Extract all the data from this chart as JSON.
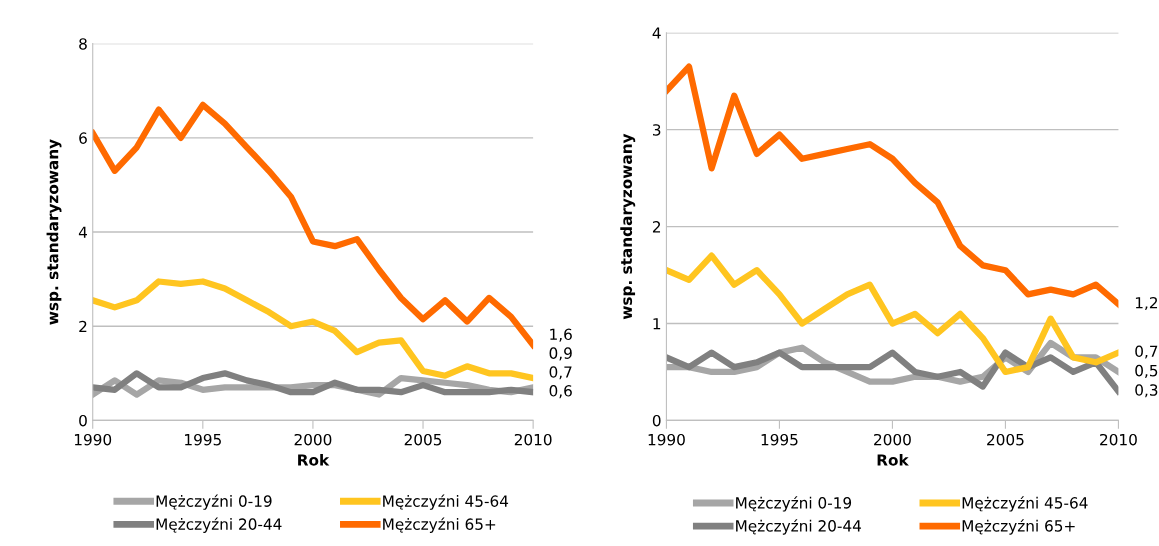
{
  "chart_data": [
    {
      "type": "line",
      "xlabel": "Rok",
      "ylabel": "wsp. standaryzowany",
      "x": [
        1990,
        1991,
        1992,
        1993,
        1994,
        1995,
        1996,
        1997,
        1998,
        1999,
        2000,
        2001,
        2002,
        2003,
        2004,
        2005,
        2006,
        2007,
        2008,
        2009,
        2010
      ],
      "xlim": [
        1990,
        2010
      ],
      "xticks": [
        1990,
        1995,
        2000,
        2005,
        2010
      ],
      "ylim": [
        0,
        8
      ],
      "yticks": [
        0,
        2,
        4,
        6,
        8
      ],
      "grid": "y",
      "legend": "bottom",
      "marker": "none",
      "line_style": "solid",
      "series": [
        {
          "name": "Mężczyźni 0-19",
          "color": "#a6a6a6",
          "values": [
            0.55,
            0.85,
            0.55,
            0.85,
            0.8,
            0.65,
            0.7,
            0.7,
            0.7,
            0.7,
            0.75,
            0.75,
            0.65,
            0.55,
            0.9,
            0.85,
            0.8,
            0.75,
            0.65,
            0.6,
            0.7
          ],
          "value_labels": [
            null,
            null,
            null,
            null,
            null,
            null,
            null,
            null,
            null,
            null,
            null,
            null,
            null,
            null,
            null,
            null,
            null,
            null,
            null,
            null,
            "0,7"
          ]
        },
        {
          "name": "Mężczyźni 20-44",
          "color": "#808080",
          "values": [
            0.7,
            0.65,
            1.0,
            0.7,
            0.7,
            0.9,
            1.0,
            0.85,
            0.75,
            0.6,
            0.6,
            0.8,
            0.65,
            0.65,
            0.6,
            0.75,
            0.6,
            0.6,
            0.6,
            0.65,
            0.6
          ],
          "value_labels": [
            null,
            null,
            null,
            null,
            null,
            null,
            null,
            null,
            null,
            null,
            null,
            null,
            null,
            null,
            null,
            null,
            null,
            null,
            null,
            null,
            "0,6"
          ]
        },
        {
          "name": "Mężczyźni 45-64",
          "color": "#ffc520",
          "values": [
            2.55,
            2.4,
            2.55,
            2.95,
            2.9,
            2.95,
            2.8,
            2.55,
            2.3,
            2.0,
            2.1,
            1.9,
            1.45,
            1.65,
            1.7,
            1.05,
            0.95,
            1.15,
            1.0,
            1.0,
            0.9
          ],
          "value_labels": [
            null,
            null,
            null,
            null,
            null,
            null,
            null,
            null,
            null,
            null,
            null,
            null,
            null,
            null,
            null,
            null,
            null,
            null,
            null,
            null,
            "0,9"
          ]
        },
        {
          "name": "Mężczyźni 65+",
          "color": "#ff6a00",
          "values": [
            6.1,
            5.3,
            5.8,
            6.6,
            6.0,
            6.7,
            6.3,
            5.8,
            5.3,
            4.75,
            3.8,
            3.7,
            3.85,
            3.2,
            2.6,
            2.15,
            2.55,
            2.1,
            2.6,
            2.2,
            1.6
          ],
          "value_labels": [
            null,
            null,
            null,
            null,
            null,
            null,
            null,
            null,
            null,
            null,
            null,
            null,
            null,
            null,
            null,
            null,
            null,
            null,
            null,
            null,
            "1,6"
          ]
        }
      ]
    },
    {
      "type": "line",
      "xlabel": "Rok",
      "ylabel": "wsp. standaryzowany",
      "x": [
        1990,
        1991,
        1992,
        1993,
        1994,
        1995,
        1996,
        1997,
        1998,
        1999,
        2000,
        2001,
        2002,
        2003,
        2004,
        2005,
        2006,
        2007,
        2008,
        2009,
        2010
      ],
      "xlim": [
        1990,
        2010
      ],
      "xticks": [
        1990,
        1995,
        2000,
        2005,
        2010
      ],
      "ylim": [
        0,
        4
      ],
      "yticks": [
        0,
        1,
        2,
        3,
        4
      ],
      "grid": "y",
      "legend": "bottom",
      "marker": "none",
      "line_style": "solid",
      "series": [
        {
          "name": "Mężczyźni 0-19",
          "color": "#a6a6a6",
          "values": [
            0.55,
            0.55,
            0.5,
            0.5,
            0.55,
            0.7,
            0.75,
            0.6,
            0.5,
            0.4,
            0.4,
            0.45,
            0.45,
            0.4,
            0.45,
            0.65,
            0.5,
            0.8,
            0.65,
            0.65,
            0.5
          ],
          "value_labels": [
            null,
            null,
            null,
            null,
            null,
            null,
            null,
            null,
            null,
            null,
            null,
            null,
            null,
            null,
            null,
            null,
            null,
            null,
            null,
            null,
            "0,5"
          ]
        },
        {
          "name": "Mężczyźni 20-44",
          "color": "#808080",
          "values": [
            0.65,
            0.55,
            0.7,
            0.55,
            0.6,
            0.7,
            0.55,
            0.55,
            0.55,
            0.55,
            0.7,
            0.5,
            0.45,
            0.5,
            0.35,
            0.7,
            0.55,
            0.65,
            0.5,
            0.6,
            0.3
          ],
          "value_labels": [
            null,
            null,
            null,
            null,
            null,
            null,
            null,
            null,
            null,
            null,
            null,
            null,
            null,
            null,
            null,
            null,
            null,
            null,
            null,
            null,
            "0,3"
          ]
        },
        {
          "name": "Mężczyźni 45-64",
          "color": "#ffc520",
          "values": [
            1.55,
            1.45,
            1.7,
            1.4,
            1.55,
            1.3,
            1.0,
            1.15,
            1.3,
            1.4,
            1.0,
            1.1,
            0.9,
            1.1,
            0.85,
            0.5,
            0.55,
            1.05,
            0.65,
            0.6,
            0.7
          ],
          "value_labels": [
            null,
            null,
            null,
            null,
            null,
            null,
            null,
            null,
            null,
            null,
            null,
            null,
            null,
            null,
            null,
            null,
            null,
            null,
            null,
            null,
            "0,7"
          ]
        },
        {
          "name": "Mężczyźni 65+",
          "color": "#ff6a00",
          "values": [
            3.4,
            3.65,
            2.6,
            3.35,
            2.75,
            2.95,
            2.7,
            2.75,
            2.8,
            2.85,
            2.7,
            2.45,
            2.25,
            1.8,
            1.6,
            1.55,
            1.3,
            1.35,
            1.3,
            1.4,
            1.2
          ],
          "value_labels": [
            null,
            null,
            null,
            null,
            null,
            null,
            null,
            null,
            null,
            null,
            null,
            null,
            null,
            null,
            null,
            null,
            null,
            null,
            null,
            null,
            "1,2"
          ]
        }
      ]
    }
  ]
}
